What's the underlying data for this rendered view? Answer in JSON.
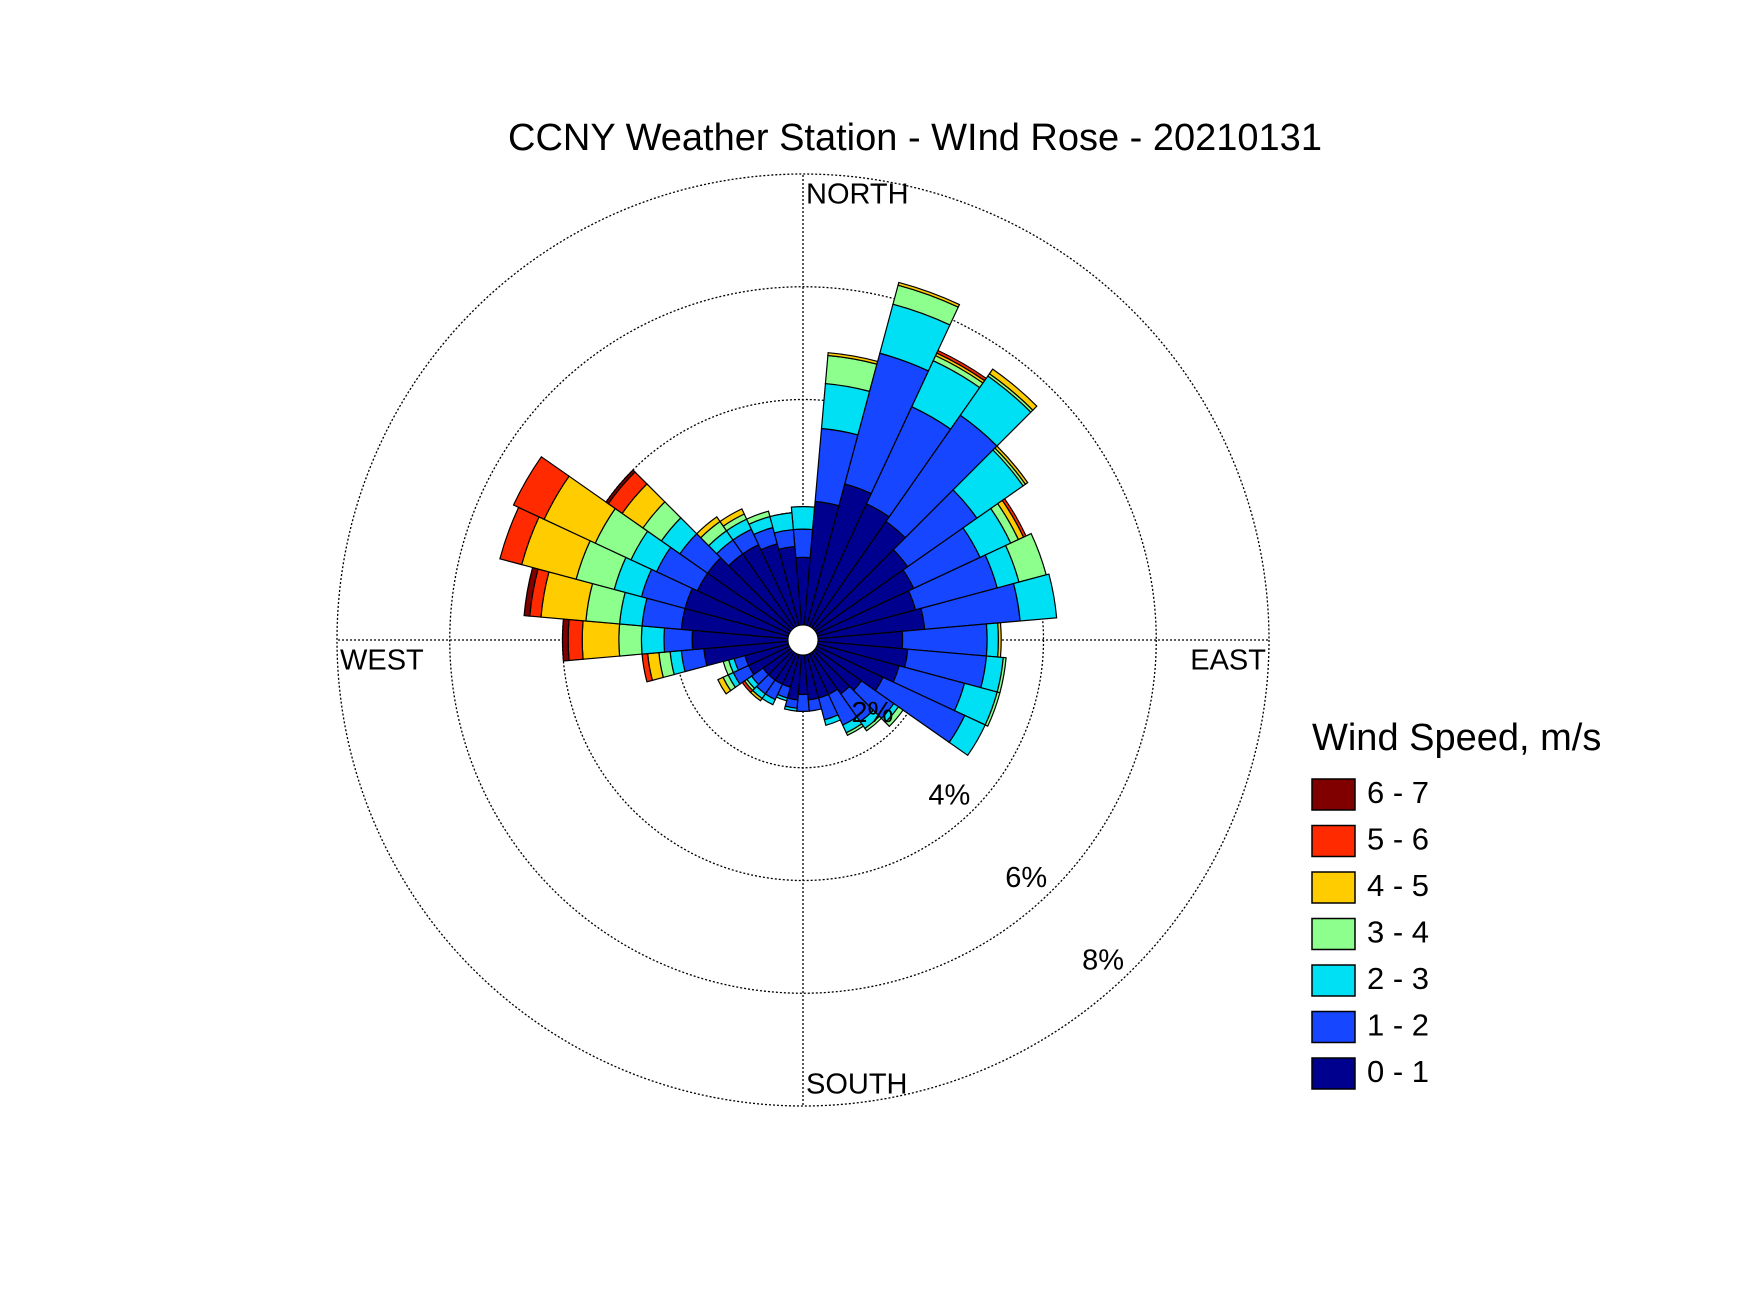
{
  "chart_data": {
    "type": "windrose",
    "title": "CCNY Weather Station - WInd Rose - 20210131",
    "legend_title": "Wind Speed, m/s",
    "x": [
      0,
      10,
      20,
      30,
      40,
      50,
      60,
      70,
      80,
      90,
      100,
      110,
      120,
      130,
      140,
      150,
      160,
      170,
      180,
      190,
      200,
      210,
      220,
      230,
      240,
      250,
      260,
      270,
      280,
      290,
      300,
      310,
      320,
      330,
      340,
      350
    ],
    "series": [
      {
        "name": "0 - 1",
        "color": "#00008f",
        "values": [
          1.2,
          2.2,
          2.6,
          2.4,
          2.3,
          2.0,
          1.9,
          1.8,
          1.9,
          1.5,
          1.6,
          1.5,
          1.3,
          1.0,
          0.9,
          0.8,
          0.8,
          0.8,
          0.7,
          0.8,
          0.6,
          0.6,
          0.6,
          0.6,
          0.8,
          0.8,
          1.5,
          1.7,
          1.9,
          1.9,
          1.8,
          1.8,
          1.6,
          1.6,
          1.5,
          1.4
        ]
      },
      {
        "name": "1 - 2",
        "color": "#1646ff",
        "values": [
          0.5,
          1.3,
          2.4,
          1.9,
          2.3,
          1.5,
          1.3,
          1.5,
          1.7,
          1.5,
          1.4,
          1.2,
          1.6,
          0.7,
          0.6,
          0.6,
          0.4,
          0.2,
          0.3,
          0.15,
          0.2,
          0.3,
          0.3,
          0.25,
          0.3,
          0.2,
          0.4,
          0.5,
          0.7,
          0.8,
          0.8,
          0.6,
          0.3,
          0.3,
          0.3,
          0.3
        ]
      },
      {
        "name": "2 - 3",
        "color": "#00e0f5",
        "values": [
          0.4,
          0.8,
          0.9,
          0.9,
          0.85,
          1.0,
          0.6,
          0.4,
          0.65,
          0.2,
          0.3,
          0.6,
          0.4,
          0.1,
          0.15,
          0.15,
          0.1,
          0,
          0,
          0.05,
          0.05,
          0.1,
          0.1,
          0.1,
          0.1,
          0.1,
          0.2,
          0.4,
          0.4,
          0.5,
          0.5,
          0.4,
          0.2,
          0.2,
          0.2,
          0.3
        ]
      },
      {
        "name": "3 - 4",
        "color": "#8cff8c",
        "values": [
          0,
          0.5,
          0.35,
          0.1,
          0.05,
          0.05,
          0.15,
          0.5,
          0,
          0,
          0.05,
          0.05,
          0,
          0.1,
          0.05,
          0.05,
          0,
          0,
          0,
          0,
          0,
          0,
          0,
          0.05,
          0.1,
          0.1,
          0.2,
          0.4,
          0.6,
          0.7,
          0.7,
          0.4,
          0.2,
          0.1,
          0.1,
          0
        ]
      },
      {
        "name": "4 - 5",
        "color": "#ffcc00",
        "values": [
          0,
          0.05,
          0.05,
          0.05,
          0.1,
          0.05,
          0.1,
          0,
          0,
          0.05,
          0,
          0,
          0,
          0,
          0,
          0,
          0,
          0,
          0,
          0,
          0,
          0,
          0.05,
          0,
          0.1,
          0,
          0.2,
          0.65,
          0.8,
          1.0,
          1.0,
          0.45,
          0.1,
          0.1,
          0,
          0
        ]
      },
      {
        "name": "5 - 6",
        "color": "#ff2a00",
        "values": [
          0,
          0,
          0,
          0.05,
          0,
          0,
          0.05,
          0,
          0,
          0,
          0,
          0,
          0,
          0,
          0,
          0,
          0,
          0,
          0,
          0,
          0,
          0,
          0,
          0.05,
          0,
          0,
          0.1,
          0.25,
          0.2,
          0.4,
          0.6,
          0.3,
          0,
          0,
          0,
          0
        ]
      },
      {
        "name": "6 - 7",
        "color": "#800000",
        "values": [
          0,
          0,
          0,
          0,
          0,
          0,
          0,
          0,
          0,
          0,
          0,
          0,
          0,
          0,
          0,
          0,
          0,
          0,
          0,
          0,
          0,
          0,
          0,
          0,
          0,
          0,
          0,
          0.1,
          0.1,
          0,
          0,
          0.05,
          0,
          0,
          0,
          0
        ]
      }
    ],
    "rlim": [
      0,
      8
    ],
    "rticks": [
      {
        "value": 2,
        "label": "2%"
      },
      {
        "value": 4,
        "label": "4%"
      },
      {
        "value": 6,
        "label": "6%"
      },
      {
        "value": 8,
        "label": "8%"
      }
    ],
    "angular_labels": [
      {
        "value": 0,
        "label": "NORTH"
      },
      {
        "value": 90,
        "label": "EAST"
      },
      {
        "value": 180,
        "label": "SOUTH"
      },
      {
        "value": 270,
        "label": "WEST"
      }
    ]
  }
}
